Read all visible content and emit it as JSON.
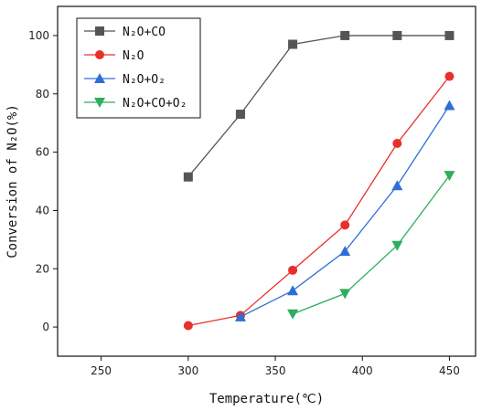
{
  "chart_data": {
    "type": "line",
    "title": "",
    "xlabel": "Temperature(℃)",
    "ylabel": "Conversion of N₂O(%)",
    "xlim": [
      225,
      465
    ],
    "ylim": [
      -10,
      110
    ],
    "xticks": [
      250,
      300,
      350,
      400,
      450
    ],
    "yticks": [
      0,
      20,
      40,
      60,
      80,
      100
    ],
    "grid": false,
    "legend_position": "top-left",
    "series": [
      {
        "name": "N₂O+CO",
        "color": "#555555",
        "marker": "square",
        "x": [
          300,
          330,
          360,
          390,
          420,
          450
        ],
        "y": [
          51.5,
          73,
          97,
          100,
          100,
          100
        ]
      },
      {
        "name": "N₂O",
        "color": "#e8302a",
        "marker": "circle",
        "x": [
          300,
          330,
          360,
          390,
          420,
          450
        ],
        "y": [
          0.5,
          4,
          19.5,
          35,
          63,
          86
        ]
      },
      {
        "name": "N₂O+O₂",
        "color": "#2e6fd6",
        "marker": "triangle-up",
        "x": [
          330,
          360,
          390,
          420,
          450
        ],
        "y": [
          3.5,
          12.5,
          26,
          48.5,
          76
        ]
      },
      {
        "name": "N₂O+CO+O₂",
        "color": "#2eae5c",
        "marker": "triangle-down",
        "x": [
          360,
          390,
          420,
          450
        ],
        "y": [
          4.5,
          11.5,
          28,
          52
        ]
      }
    ]
  }
}
